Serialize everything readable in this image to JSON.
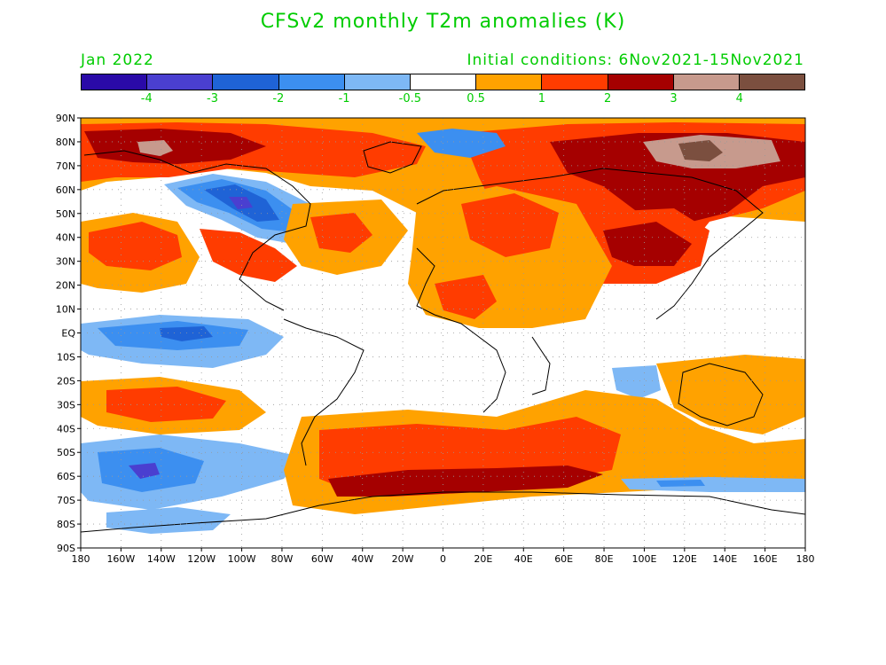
{
  "title": "CFSv2 monthly T2m anomalies (K)",
  "valid_month": "Jan 2022",
  "initial_conditions": "Initial conditions: 6Nov2021-15Nov2021",
  "colorbar": {
    "colors": [
      "#2a0aa8",
      "#4a3fd0",
      "#1f63d6",
      "#3c8ff0",
      "#7eb8f5",
      "#ffffff",
      "#ffa200",
      "#ff3c00",
      "#a50000",
      "#c79a8d",
      "#7b4f3f"
    ],
    "labels": [
      "-4",
      "-3",
      "-2",
      "-1",
      "-0.5",
      "0.5",
      "1",
      "2",
      "3",
      "4"
    ]
  },
  "map": {
    "projection": "latitude-longitude",
    "lat_labels": [
      "90N",
      "80N",
      "70N",
      "60N",
      "50N",
      "40N",
      "30N",
      "20N",
      "10N",
      "EQ",
      "10S",
      "20S",
      "30S",
      "40S",
      "50S",
      "60S",
      "70S",
      "80S",
      "90S"
    ],
    "lon_labels": [
      "180",
      "160W",
      "140W",
      "120W",
      "100W",
      "80W",
      "60W",
      "40W",
      "20W",
      "0",
      "20E",
      "40E",
      "60E",
      "80E",
      "100E",
      "120E",
      "140E",
      "160E",
      "180"
    ]
  }
}
